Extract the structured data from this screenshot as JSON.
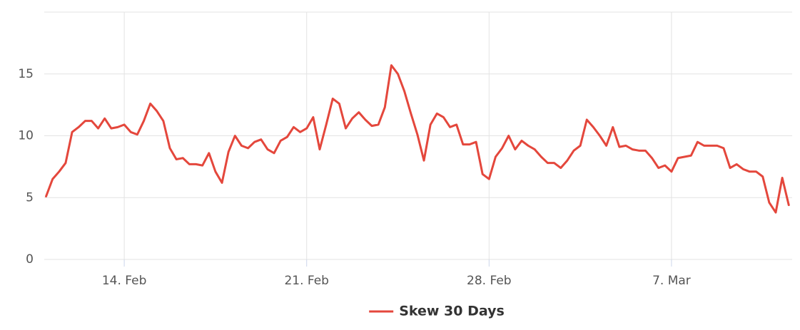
{
  "chart_data": {
    "type": "line",
    "x": [
      11,
      11.25,
      11.5,
      11.75,
      12,
      12.25,
      12.5,
      12.75,
      13,
      13.25,
      13.5,
      13.75,
      14,
      14.25,
      14.5,
      14.75,
      15,
      15.25,
      15.5,
      15.75,
      16,
      16.25,
      16.5,
      16.75,
      17,
      17.25,
      17.5,
      17.75,
      18,
      18.25,
      18.5,
      18.75,
      19,
      19.25,
      19.5,
      19.75,
      20,
      20.25,
      20.5,
      20.75,
      21,
      21.25,
      21.5,
      21.75,
      22,
      22.25,
      22.5,
      22.75,
      23,
      23.25,
      23.5,
      23.75,
      24,
      24.25,
      24.5,
      24.75,
      25,
      25.25,
      25.5,
      25.75,
      26,
      26.25,
      26.5,
      26.75,
      27,
      27.25,
      27.5,
      27.75,
      28,
      28.25,
      28.5,
      28.75,
      29,
      29.25,
      29.5,
      29.75,
      30,
      30.25,
      30.5,
      30.75,
      31,
      31.25,
      31.5,
      31.75,
      32,
      32.25,
      32.5,
      32.75,
      33,
      33.25,
      33.5,
      33.75,
      34,
      34.25,
      34.5,
      34.75,
      35,
      35.25,
      35.5,
      35.75,
      36,
      36.25,
      36.5,
      36.75,
      37,
      37.25,
      37.5,
      37.75,
      38,
      38.25,
      38.5,
      38.75,
      39,
      39.25,
      39.5
    ],
    "series": [
      {
        "name": "Skew 30 Days",
        "color": "#e4473c",
        "values": [
          5.1,
          6.5,
          7.1,
          7.8,
          10.3,
          10.7,
          11.2,
          11.2,
          10.6,
          11.4,
          10.6,
          10.7,
          10.9,
          10.3,
          10.1,
          11.2,
          12.6,
          12.0,
          11.2,
          9.0,
          8.1,
          8.2,
          7.7,
          7.7,
          7.6,
          8.6,
          7.1,
          6.2,
          8.7,
          10.0,
          9.2,
          9.0,
          9.5,
          9.7,
          8.9,
          8.6,
          9.6,
          9.9,
          10.7,
          10.3,
          10.6,
          11.5,
          8.9,
          10.9,
          13.0,
          12.6,
          10.6,
          11.4,
          11.9,
          11.3,
          10.8,
          10.9,
          12.3,
          15.7,
          15.0,
          13.6,
          11.8,
          10.1,
          8.0,
          10.9,
          11.8,
          11.5,
          10.7,
          10.9,
          9.3,
          9.3,
          9.5,
          6.9,
          6.5,
          8.3,
          9.0,
          10.0,
          8.9,
          9.6,
          9.2,
          8.9,
          8.3,
          7.8,
          7.8,
          7.4,
          8.0,
          8.8,
          9.2,
          11.3,
          10.7,
          10.0,
          9.2,
          10.7,
          9.1,
          9.2,
          8.9,
          8.8,
          8.8,
          8.2,
          7.4,
          7.6,
          7.1,
          8.2,
          8.3,
          8.4,
          9.5,
          9.2,
          9.2,
          9.2,
          9.0,
          7.4,
          7.7,
          7.3,
          7.1,
          7.1,
          6.7,
          4.6,
          3.8,
          6.6,
          4.4
        ]
      }
    ],
    "xlim": [
      10.93,
      39.63
    ],
    "xticks": [
      {
        "value": 14,
        "label": "14. Feb"
      },
      {
        "value": 21,
        "label": "21. Feb"
      },
      {
        "value": 28,
        "label": "28. Feb"
      },
      {
        "value": 35,
        "label": "7. Mar"
      }
    ],
    "ylim": [
      0,
      20
    ],
    "yticks": [
      0,
      5,
      10,
      15
    ],
    "grid": true,
    "legend": "bottom"
  }
}
